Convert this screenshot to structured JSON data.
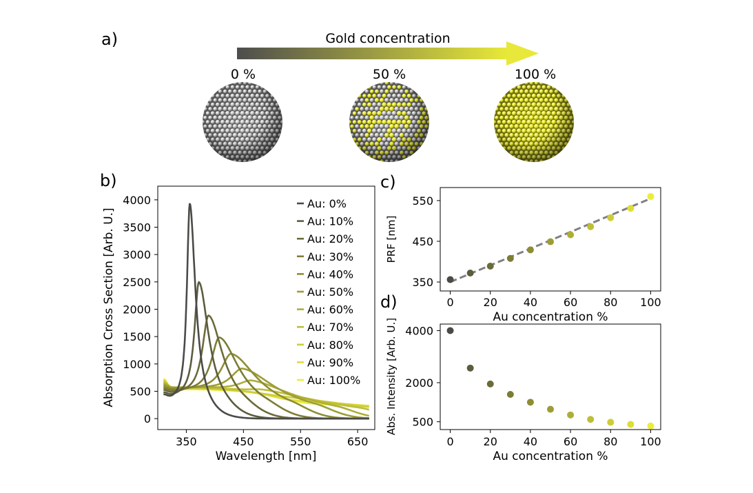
{
  "panel_a": {
    "letter": "a)",
    "arrow_label": "Gold concentration",
    "arrow_colors": [
      "#4d4d4d",
      "#e8e83a"
    ],
    "spheres": [
      {
        "label": "0 %",
        "fraction": 0.0
      },
      {
        "label": "50 %",
        "fraction": 0.5
      },
      {
        "label": "100 %",
        "fraction": 1.0
      }
    ],
    "colors": {
      "silver": "#b4b4b4",
      "gold": "#eeee30"
    }
  },
  "chart_data": [
    {
      "id": "b",
      "letter": "b)",
      "type": "line",
      "xlabel": "Wavelength [nm]",
      "ylabel": "Absorption Cross Section [Arb. U.]",
      "xlim": [
        300,
        680
      ],
      "ylim": [
        -200,
        4250
      ],
      "xticks": [
        350,
        450,
        550,
        650
      ],
      "yticks": [
        0,
        500,
        1000,
        1500,
        2000,
        2500,
        3000,
        3500,
        4000
      ],
      "grid": false,
      "legend_position": "upper right",
      "x_start": 310,
      "x_end": 670,
      "series": [
        {
          "name": "Au: 0%",
          "color": "#4a4a47",
          "peak_x": 356,
          "peak_y": 4000,
          "start_y": 380,
          "dip_x": 320,
          "dip_y": 290
        },
        {
          "name": "Au: 10%",
          "color": "#5c5c3e",
          "peak_x": 372,
          "peak_y": 2560,
          "start_y": 430,
          "dip_x": 322,
          "dip_y": 360
        },
        {
          "name": "Au: 20%",
          "color": "#6b6b38",
          "peak_x": 389,
          "peak_y": 1950,
          "start_y": 480,
          "dip_x": 325,
          "dip_y": 420
        },
        {
          "name": "Au: 30%",
          "color": "#7c7c36",
          "peak_x": 408,
          "peak_y": 1550,
          "start_y": 520,
          "dip_x": 328,
          "dip_y": 470
        },
        {
          "name": "Au: 40%",
          "color": "#8d8d36",
          "peak_x": 429,
          "peak_y": 1250,
          "start_y": 560,
          "dip_x": 332,
          "dip_y": 510
        },
        {
          "name": "Au: 50%",
          "color": "#9d9d36",
          "peak_x": 449,
          "peak_y": 980,
          "start_y": 600,
          "dip_x": 335,
          "dip_y": 540
        },
        {
          "name": "Au: 60%",
          "color": "#aeae37",
          "peak_x": 466,
          "peak_y": 760,
          "start_y": 630,
          "dip_x": 340,
          "dip_y": 560
        },
        {
          "name": "Au: 70%",
          "color": "#bebe37",
          "peak_x": 486,
          "peak_y": 590,
          "start_y": 660,
          "dip_x": 345,
          "dip_y": 565
        },
        {
          "name": "Au: 80%",
          "color": "#cdcd38",
          "peak_x": 508,
          "peak_y": 480,
          "start_y": 690,
          "dip_x": 350,
          "dip_y": 560
        },
        {
          "name": "Au: 90%",
          "color": "#dddd39",
          "peak_x": 531,
          "peak_y": 400,
          "start_y": 710,
          "dip_x": 355,
          "dip_y": 555
        },
        {
          "name": "Au: 100%",
          "color": "#ecec3b",
          "peak_x": 560,
          "peak_y": 340,
          "start_y": 730,
          "dip_x": 360,
          "dip_y": 545
        }
      ]
    },
    {
      "id": "c",
      "letter": "c)",
      "type": "scatter",
      "xlabel": "Au concentration %",
      "ylabel": "PRF [nm]",
      "xlim": [
        -5,
        105
      ],
      "ylim": [
        328,
        582
      ],
      "xticks": [
        0,
        20,
        40,
        60,
        80,
        100
      ],
      "yticks": [
        350,
        450,
        550
      ],
      "grid": false,
      "x": [
        0,
        10,
        20,
        30,
        40,
        50,
        60,
        70,
        80,
        90,
        100
      ],
      "y": [
        356,
        372,
        389,
        408,
        429,
        449,
        466,
        486,
        508,
        531,
        560
      ],
      "fit_line": {
        "x": [
          0,
          100
        ],
        "y": [
          350,
          555
        ],
        "color": "#808080"
      }
    },
    {
      "id": "d",
      "letter": "d)",
      "type": "scatter",
      "xlabel": "Au concentration %",
      "ylabel": "Abs. Intensity [Arb. U.]",
      "xlim": [
        -5,
        105
      ],
      "ylim": [
        200,
        4250
      ],
      "xticks": [
        0,
        20,
        40,
        60,
        80,
        100
      ],
      "yticks": [
        500,
        2000,
        4000
      ],
      "grid": false,
      "x": [
        0,
        10,
        20,
        30,
        40,
        50,
        60,
        70,
        80,
        90,
        100
      ],
      "y": [
        4000,
        2560,
        1950,
        1550,
        1250,
        980,
        760,
        590,
        480,
        400,
        340
      ]
    }
  ]
}
